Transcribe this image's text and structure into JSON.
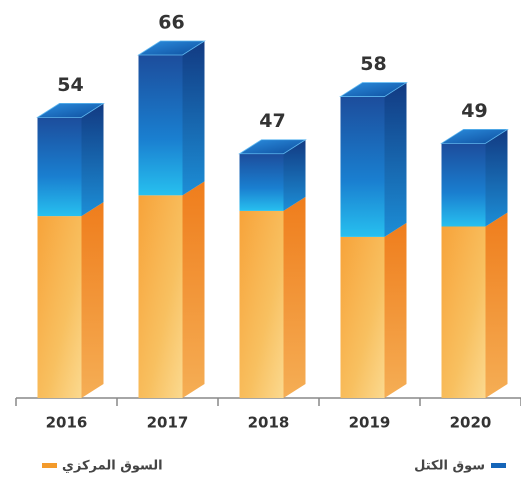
{
  "chart_data": {
    "type": "stacked_bar_3d",
    "categories": [
      "2016",
      "2017",
      "2018",
      "2019",
      "2020"
    ],
    "series": [
      {
        "name": "السوق المركزي",
        "color": "#f39a2b",
        "values": [
          35,
          39,
          36,
          31,
          33
        ]
      },
      {
        "name": "سوق الكتل",
        "color": "#1565b8",
        "values": [
          19,
          27,
          11,
          27,
          16
        ]
      }
    ],
    "totals": [
      54,
      66,
      47,
      58,
      49
    ]
  }
}
